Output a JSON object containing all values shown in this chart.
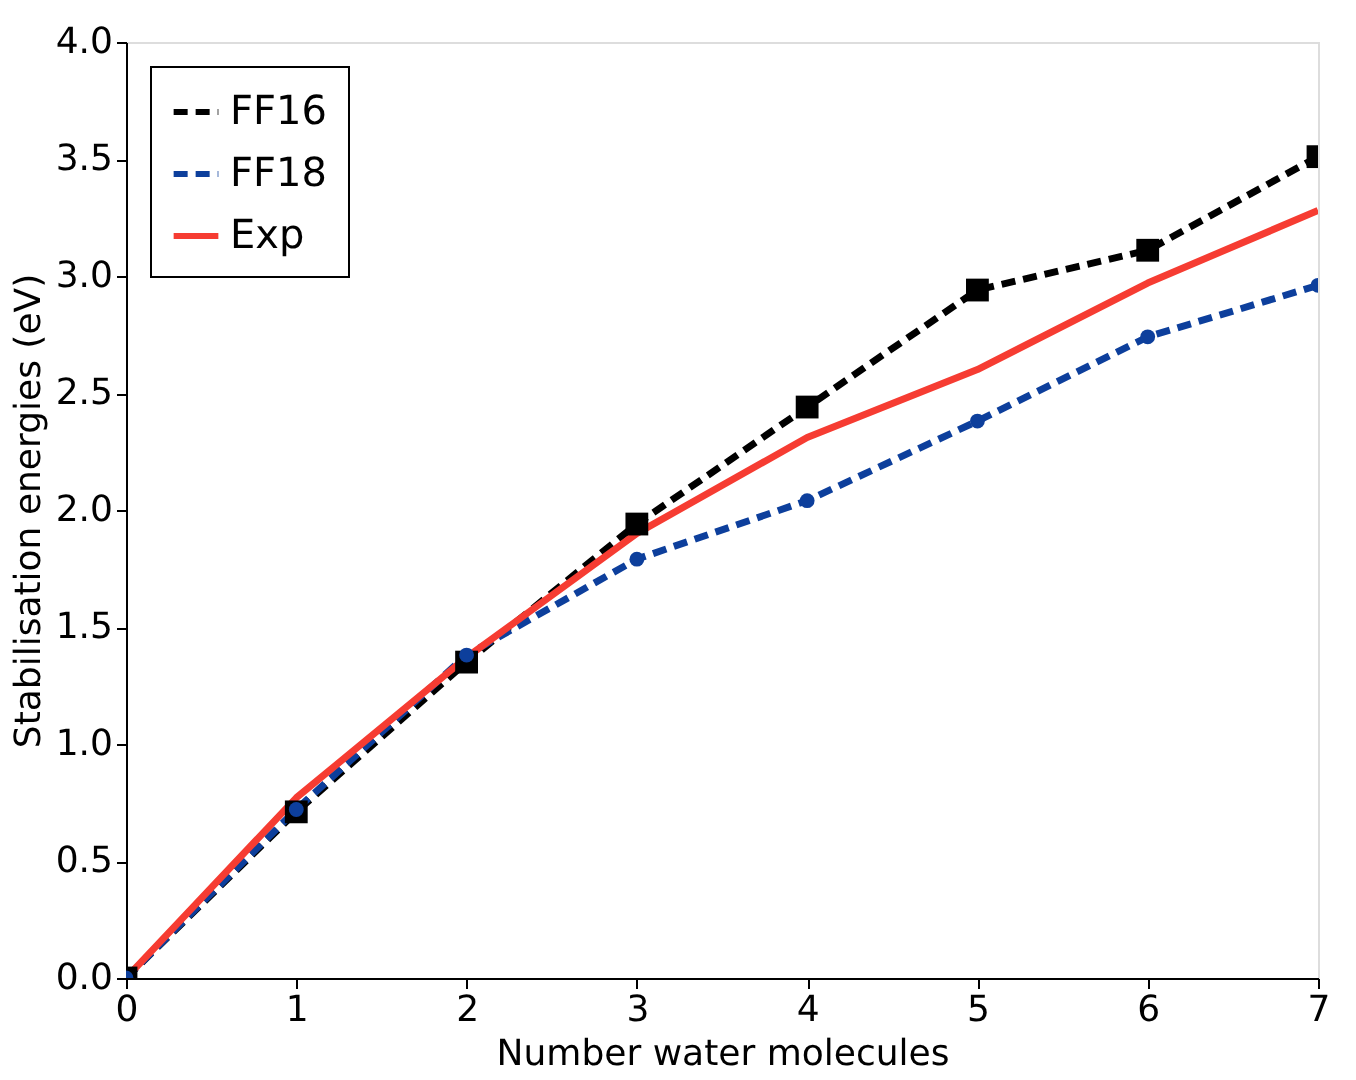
{
  "chart_data": {
    "type": "line",
    "xlabel": "Number water molecules",
    "ylabel": "Stabilisation  energies (eV)",
    "x": [
      0,
      1,
      2,
      3,
      4,
      5,
      6,
      7
    ],
    "series": [
      {
        "name": "FF16",
        "color": "#000000",
        "marker": "square",
        "line_style": "dashed",
        "values": [
          0,
          0.71,
          1.35,
          1.94,
          2.44,
          2.94,
          3.11,
          3.51
        ]
      },
      {
        "name": "FF18",
        "color": "#0d3f9c",
        "marker": "circle",
        "line_style": "dashed",
        "values": [
          0,
          0.72,
          1.38,
          1.79,
          2.04,
          2.38,
          2.74,
          2.96
        ]
      },
      {
        "name": "Exp",
        "color": "#f63c32",
        "marker": "none",
        "line_style": "solid",
        "values": [
          0,
          0.77,
          1.37,
          1.9,
          2.31,
          2.6,
          2.97,
          3.28
        ]
      }
    ],
    "xlim": [
      0,
      7
    ],
    "xticks": [
      0,
      1,
      2,
      3,
      4,
      5,
      6,
      7
    ],
    "ylim": [
      0,
      4.0
    ],
    "yticks": [
      {
        "value": 0,
        "label": "0.0"
      },
      {
        "value": 0.5,
        "label": "0.5"
      },
      {
        "value": 1,
        "label": "1.0"
      },
      {
        "value": 1.5,
        "label": "1.5"
      },
      {
        "value": 2,
        "label": "2.0"
      },
      {
        "value": 2.5,
        "label": "2.5"
      },
      {
        "value": 3,
        "label": "3.0"
      },
      {
        "value": 3.5,
        "label": "3.5"
      },
      {
        "value": 4,
        "label": "4.0"
      }
    ],
    "grid": false,
    "legend": "top left"
  }
}
